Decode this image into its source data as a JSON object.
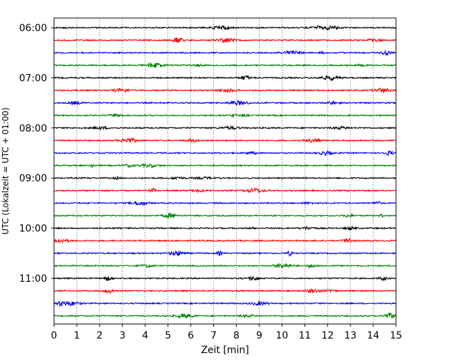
{
  "chart_data": {
    "type": "line",
    "title": "",
    "xlabel": "Zeit  [min]",
    "ylabel": "UTC (Lokalzeit = UTC + 01:00)",
    "xlim": [
      0,
      15
    ],
    "x_ticks": [
      0,
      1,
      2,
      3,
      4,
      5,
      6,
      7,
      8,
      9,
      10,
      11,
      12,
      13,
      14,
      15
    ],
    "x_tick_labels": [
      "0",
      "1",
      "2",
      "3",
      "4",
      "5",
      "6",
      "7",
      "8",
      "9",
      "10",
      "11",
      "12",
      "13",
      "14",
      "15"
    ],
    "y_tick_labels": [
      "06:00",
      "07:00",
      "08:00",
      "09:00",
      "10:00",
      "11:00"
    ],
    "y_tick_trace_index": [
      0,
      4,
      8,
      12,
      16,
      20
    ],
    "trace_interval_minutes": 15,
    "start_time": "06:00",
    "trace_count": 24,
    "color_cycle": [
      "#000000",
      "#ff0000",
      "#0000ff",
      "#008000"
    ],
    "grid": {
      "x": true,
      "y": false,
      "style": "dotted"
    },
    "legend": "none"
  }
}
